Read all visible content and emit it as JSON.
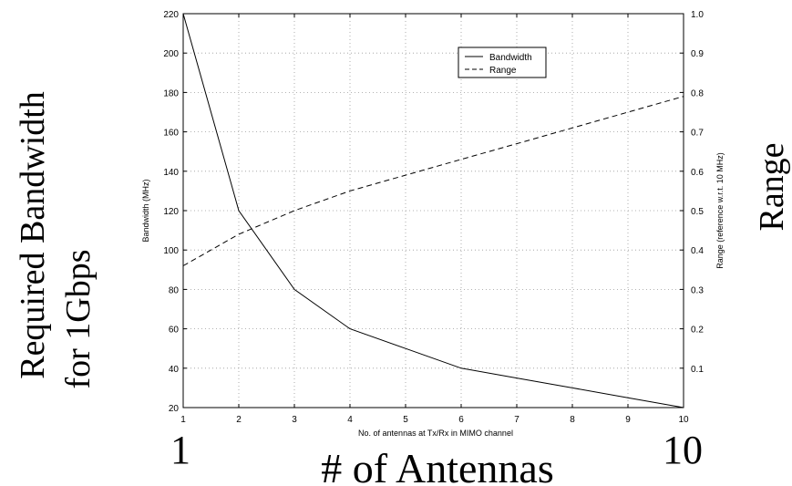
{
  "chart_data": {
    "type": "line",
    "x": [
      1,
      2,
      3,
      4,
      5,
      6,
      7,
      8,
      9,
      10
    ],
    "xlabel": "No. of antennas at Tx/Rx in MIMO channel",
    "ylabel": "Bandwidth (MHz)",
    "y2label": "Range (reference w.r.t. 10 MHz)",
    "xlim": [
      1,
      10
    ],
    "ylim": [
      20,
      220
    ],
    "y2lim": [
      0,
      1.0
    ],
    "x_ticks": [
      "1",
      "2",
      "3",
      "4",
      "5",
      "6",
      "7",
      "8",
      "9",
      "10"
    ],
    "y_ticks": [
      "20",
      "40",
      "60",
      "80",
      "100",
      "120",
      "140",
      "160",
      "180",
      "200",
      "220"
    ],
    "y2_ticks": [
      "0.1",
      "0.2",
      "0.3",
      "0.4",
      "0.5",
      "0.6",
      "0.7",
      "0.8",
      "0.9",
      "1.0"
    ],
    "grid": true,
    "legend_position": "top-center",
    "series": [
      {
        "name": "Bandwidth",
        "axis": "left",
        "style": "solid",
        "values": [
          220,
          120,
          80,
          60,
          50,
          40,
          35,
          30,
          25,
          20
        ]
      },
      {
        "name": "Range",
        "axis": "right",
        "style": "dashed",
        "values": [
          0.36,
          0.44,
          0.5,
          0.55,
          0.59,
          0.63,
          0.67,
          0.71,
          0.75,
          0.79
        ]
      }
    ]
  },
  "annotations": {
    "left_label_line1": "Required Bandwidth",
    "left_label_line2": "for 1Gbps",
    "right_label": "Range",
    "bottom_label": "# of Antennas",
    "x_start": "1",
    "x_end": "10"
  }
}
